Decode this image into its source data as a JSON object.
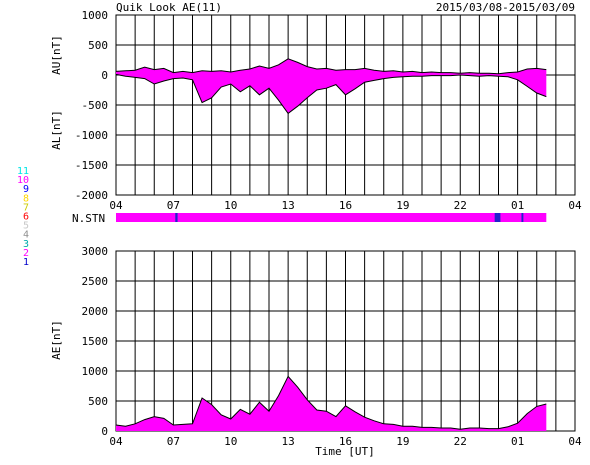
{
  "header": {
    "title": "Quik Look AE(11)",
    "date_range": "2015/03/08-2015/03/09"
  },
  "colors": {
    "fill": "#ff00ff",
    "outline": "#000000",
    "grid": "#000000",
    "station_bar": "#ff00ff",
    "station_gap": "#2222cc"
  },
  "legend": {
    "items": [
      {
        "label": "11",
        "color": "#00e5e5"
      },
      {
        "label": "10",
        "color": "#ff00ff"
      },
      {
        "label": "9",
        "color": "#0000ff"
      },
      {
        "label": "8",
        "color": "#ffd700"
      },
      {
        "label": "7",
        "color": "#cccc00"
      },
      {
        "label": "6",
        "color": "#ff0000"
      },
      {
        "label": "5",
        "color": "#c8c8c8"
      },
      {
        "label": "4",
        "color": "#909090"
      },
      {
        "label": "3",
        "color": "#00aaaa"
      },
      {
        "label": "2",
        "color": "#ff00ff"
      },
      {
        "label": "1",
        "color": "#0000cc"
      }
    ]
  },
  "station_label": "N.STN",
  "chart_data": [
    {
      "type": "area",
      "ylabel_upper": "AU[nT]",
      "ylabel_lower": "AL[nT]",
      "ylim": [
        -2000,
        1000
      ],
      "yticks": [
        "1000",
        "500",
        "0",
        "-500",
        "-1000",
        "-1500",
        "-2000"
      ],
      "xticks": [
        "04",
        "07",
        "10",
        "13",
        "16",
        "19",
        "22",
        "01",
        "04"
      ],
      "x_unit": "hours since 04 UT",
      "xlim": [
        0,
        24
      ],
      "au": [
        [
          0,
          60
        ],
        [
          0.5,
          70
        ],
        [
          1,
          80
        ],
        [
          1.5,
          130
        ],
        [
          2,
          90
        ],
        [
          2.5,
          110
        ],
        [
          3,
          40
        ],
        [
          3.5,
          60
        ],
        [
          4,
          40
        ],
        [
          4.5,
          70
        ],
        [
          5,
          60
        ],
        [
          5.5,
          70
        ],
        [
          6,
          50
        ],
        [
          6.5,
          80
        ],
        [
          7,
          100
        ],
        [
          7.5,
          150
        ],
        [
          8,
          110
        ],
        [
          8.5,
          170
        ],
        [
          9,
          270
        ],
        [
          9.5,
          210
        ],
        [
          10,
          140
        ],
        [
          10.5,
          100
        ],
        [
          11,
          110
        ],
        [
          11.5,
          80
        ],
        [
          12,
          90
        ],
        [
          12.5,
          90
        ],
        [
          13,
          110
        ],
        [
          13.5,
          80
        ],
        [
          14,
          60
        ],
        [
          14.5,
          70
        ],
        [
          15,
          50
        ],
        [
          15.5,
          60
        ],
        [
          16,
          40
        ],
        [
          16.5,
          50
        ],
        [
          17,
          40
        ],
        [
          17.5,
          40
        ],
        [
          18,
          30
        ],
        [
          18.5,
          40
        ],
        [
          19,
          30
        ],
        [
          19.5,
          30
        ],
        [
          20,
          20
        ],
        [
          20.5,
          40
        ],
        [
          21,
          50
        ],
        [
          21.5,
          100
        ],
        [
          22,
          110
        ],
        [
          22.5,
          90
        ]
      ],
      "al": [
        [
          0,
          10
        ],
        [
          0.5,
          -20
        ],
        [
          1,
          -40
        ],
        [
          1.5,
          -60
        ],
        [
          2,
          -150
        ],
        [
          2.5,
          -100
        ],
        [
          3,
          -60
        ],
        [
          3.5,
          -50
        ],
        [
          4,
          -80
        ],
        [
          4.5,
          -460
        ],
        [
          5,
          -380
        ],
        [
          5.5,
          -200
        ],
        [
          6,
          -150
        ],
        [
          6.5,
          -280
        ],
        [
          7,
          -180
        ],
        [
          7.5,
          -330
        ],
        [
          8,
          -220
        ],
        [
          8.5,
          -420
        ],
        [
          9,
          -640
        ],
        [
          9.5,
          -520
        ],
        [
          10,
          -380
        ],
        [
          10.5,
          -250
        ],
        [
          11,
          -220
        ],
        [
          11.5,
          -160
        ],
        [
          12,
          -330
        ],
        [
          12.5,
          -230
        ],
        [
          13,
          -120
        ],
        [
          13.5,
          -90
        ],
        [
          14,
          -60
        ],
        [
          14.5,
          -40
        ],
        [
          15,
          -30
        ],
        [
          15.5,
          -20
        ],
        [
          16,
          -20
        ],
        [
          16.5,
          -10
        ],
        [
          17,
          -10
        ],
        [
          17.5,
          -10
        ],
        [
          18,
          0
        ],
        [
          18.5,
          -10
        ],
        [
          19,
          -20
        ],
        [
          19.5,
          -10
        ],
        [
          20,
          -20
        ],
        [
          20.5,
          -30
        ],
        [
          21,
          -80
        ],
        [
          21.5,
          -190
        ],
        [
          22,
          -300
        ],
        [
          22.5,
          -360
        ]
      ]
    },
    {
      "type": "area",
      "ylabel": "AE[nT]",
      "xlabel": "Time [UT]",
      "ylim": [
        0,
        3000
      ],
      "yticks": [
        "3000",
        "2500",
        "2000",
        "1500",
        "1000",
        "500",
        "0"
      ],
      "xticks": [
        "04",
        "07",
        "10",
        "13",
        "16",
        "19",
        "22",
        "01",
        "04"
      ],
      "x_unit": "hours since 04 UT",
      "xlim": [
        0,
        24
      ],
      "ae": [
        [
          0,
          100
        ],
        [
          0.5,
          80
        ],
        [
          1,
          120
        ],
        [
          1.5,
          190
        ],
        [
          2,
          240
        ],
        [
          2.5,
          210
        ],
        [
          3,
          100
        ],
        [
          3.5,
          110
        ],
        [
          4,
          120
        ],
        [
          4.5,
          550
        ],
        [
          5,
          440
        ],
        [
          5.5,
          270
        ],
        [
          6,
          200
        ],
        [
          6.5,
          360
        ],
        [
          7,
          280
        ],
        [
          7.5,
          480
        ],
        [
          8,
          330
        ],
        [
          8.5,
          590
        ],
        [
          9,
          910
        ],
        [
          9.5,
          730
        ],
        [
          10,
          520
        ],
        [
          10.5,
          350
        ],
        [
          11,
          330
        ],
        [
          11.5,
          240
        ],
        [
          12,
          420
        ],
        [
          12.5,
          320
        ],
        [
          13,
          230
        ],
        [
          13.5,
          170
        ],
        [
          14,
          120
        ],
        [
          14.5,
          110
        ],
        [
          15,
          80
        ],
        [
          15.5,
          80
        ],
        [
          16,
          60
        ],
        [
          16.5,
          60
        ],
        [
          17,
          50
        ],
        [
          17.5,
          50
        ],
        [
          18,
          30
        ],
        [
          18.5,
          50
        ],
        [
          19,
          50
        ],
        [
          19.5,
          40
        ],
        [
          20,
          40
        ],
        [
          20.5,
          70
        ],
        [
          21,
          130
        ],
        [
          21.5,
          290
        ],
        [
          22,
          410
        ],
        [
          22.5,
          450
        ]
      ]
    }
  ]
}
